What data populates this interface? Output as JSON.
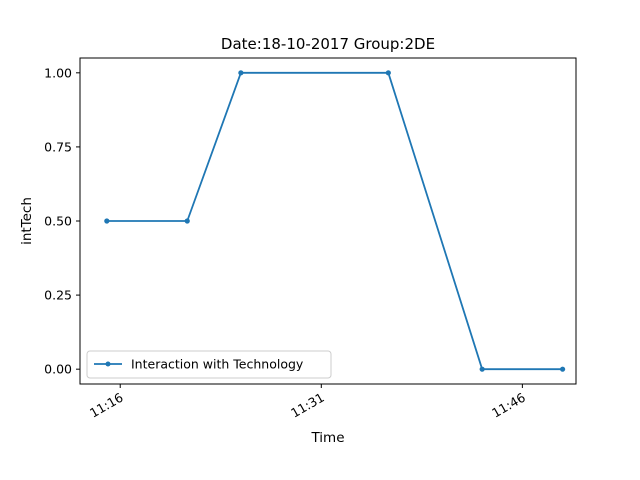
{
  "chart_data": {
    "type": "line",
    "title": "Date:18-10-2017  Group:2DE",
    "xlabel": "Time",
    "ylabel": "intTech",
    "x_ticks": [
      "11:16",
      "11:31",
      "11:46"
    ],
    "y_ticks": [
      "0.00",
      "0.25",
      "0.50",
      "0.75",
      "1.00"
    ],
    "xlim": [
      "11:13",
      "11:50"
    ],
    "ylim": [
      -0.05,
      1.05
    ],
    "grid": false,
    "legend_position": "lower-left",
    "series": [
      {
        "name": "Interaction with Technology",
        "color": "#1f77b4",
        "marker": "dot",
        "x": [
          "11:15",
          "11:21",
          "11:25",
          "11:36",
          "11:43",
          "11:49"
        ],
        "y": [
          0.5,
          0.5,
          1.0,
          1.0,
          0.0,
          0.0
        ]
      }
    ]
  }
}
